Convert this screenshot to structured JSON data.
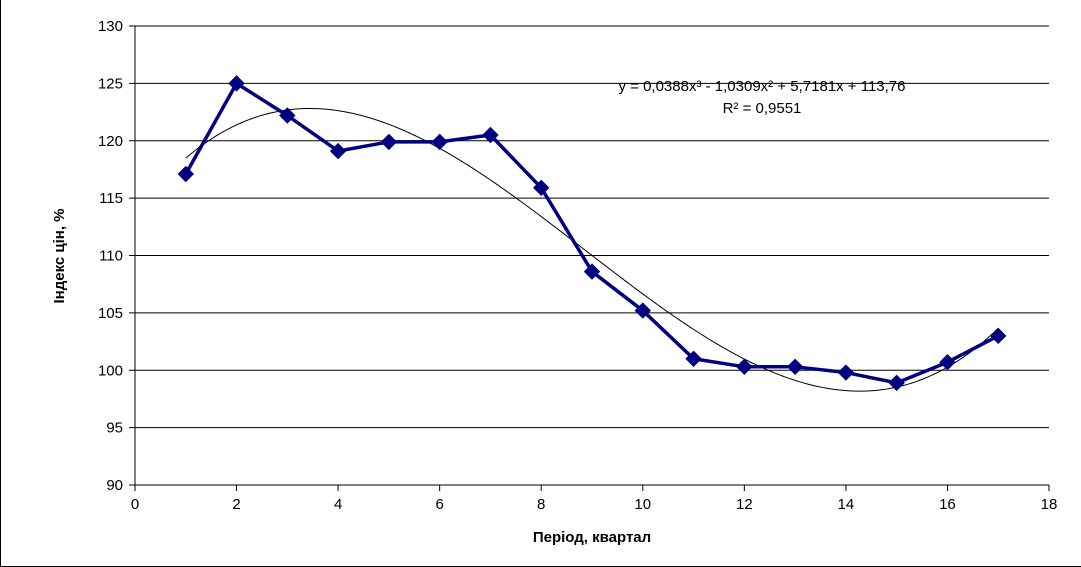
{
  "chart_data": {
    "type": "line",
    "xlabel": "Період, квартал",
    "ylabel": "Індекс цін, %",
    "xlim": [
      0,
      18
    ],
    "ylim": [
      90,
      130
    ],
    "xticks": [
      0,
      2,
      4,
      6,
      8,
      10,
      12,
      14,
      16,
      18
    ],
    "yticks": [
      90,
      95,
      100,
      105,
      110,
      115,
      120,
      125,
      130
    ],
    "grid": "horizontal",
    "series": [
      {
        "x": [
          1,
          2,
          3,
          4,
          5,
          6,
          7,
          8,
          9,
          10,
          11,
          12,
          13,
          14,
          15,
          16,
          17
        ],
        "y": [
          117.1,
          125.0,
          122.2,
          119.1,
          119.9,
          119.9,
          120.5,
          115.9,
          108.6,
          105.2,
          101.0,
          100.3,
          100.3,
          99.8,
          98.9,
          100.7,
          103.0
        ],
        "color": "#000080",
        "marker": "diamond"
      }
    ],
    "trendline": {
      "type": "polynomial-3",
      "coefficients": [
        0.0388,
        -1.0309,
        5.7181,
        113.76
      ],
      "x_range": [
        1,
        17
      ],
      "color": "#000000",
      "equation": "y = 0,0388x³ - 1,0309x² + 5,7181x + 113,76",
      "r_squared": "R² = 0,9551"
    }
  }
}
